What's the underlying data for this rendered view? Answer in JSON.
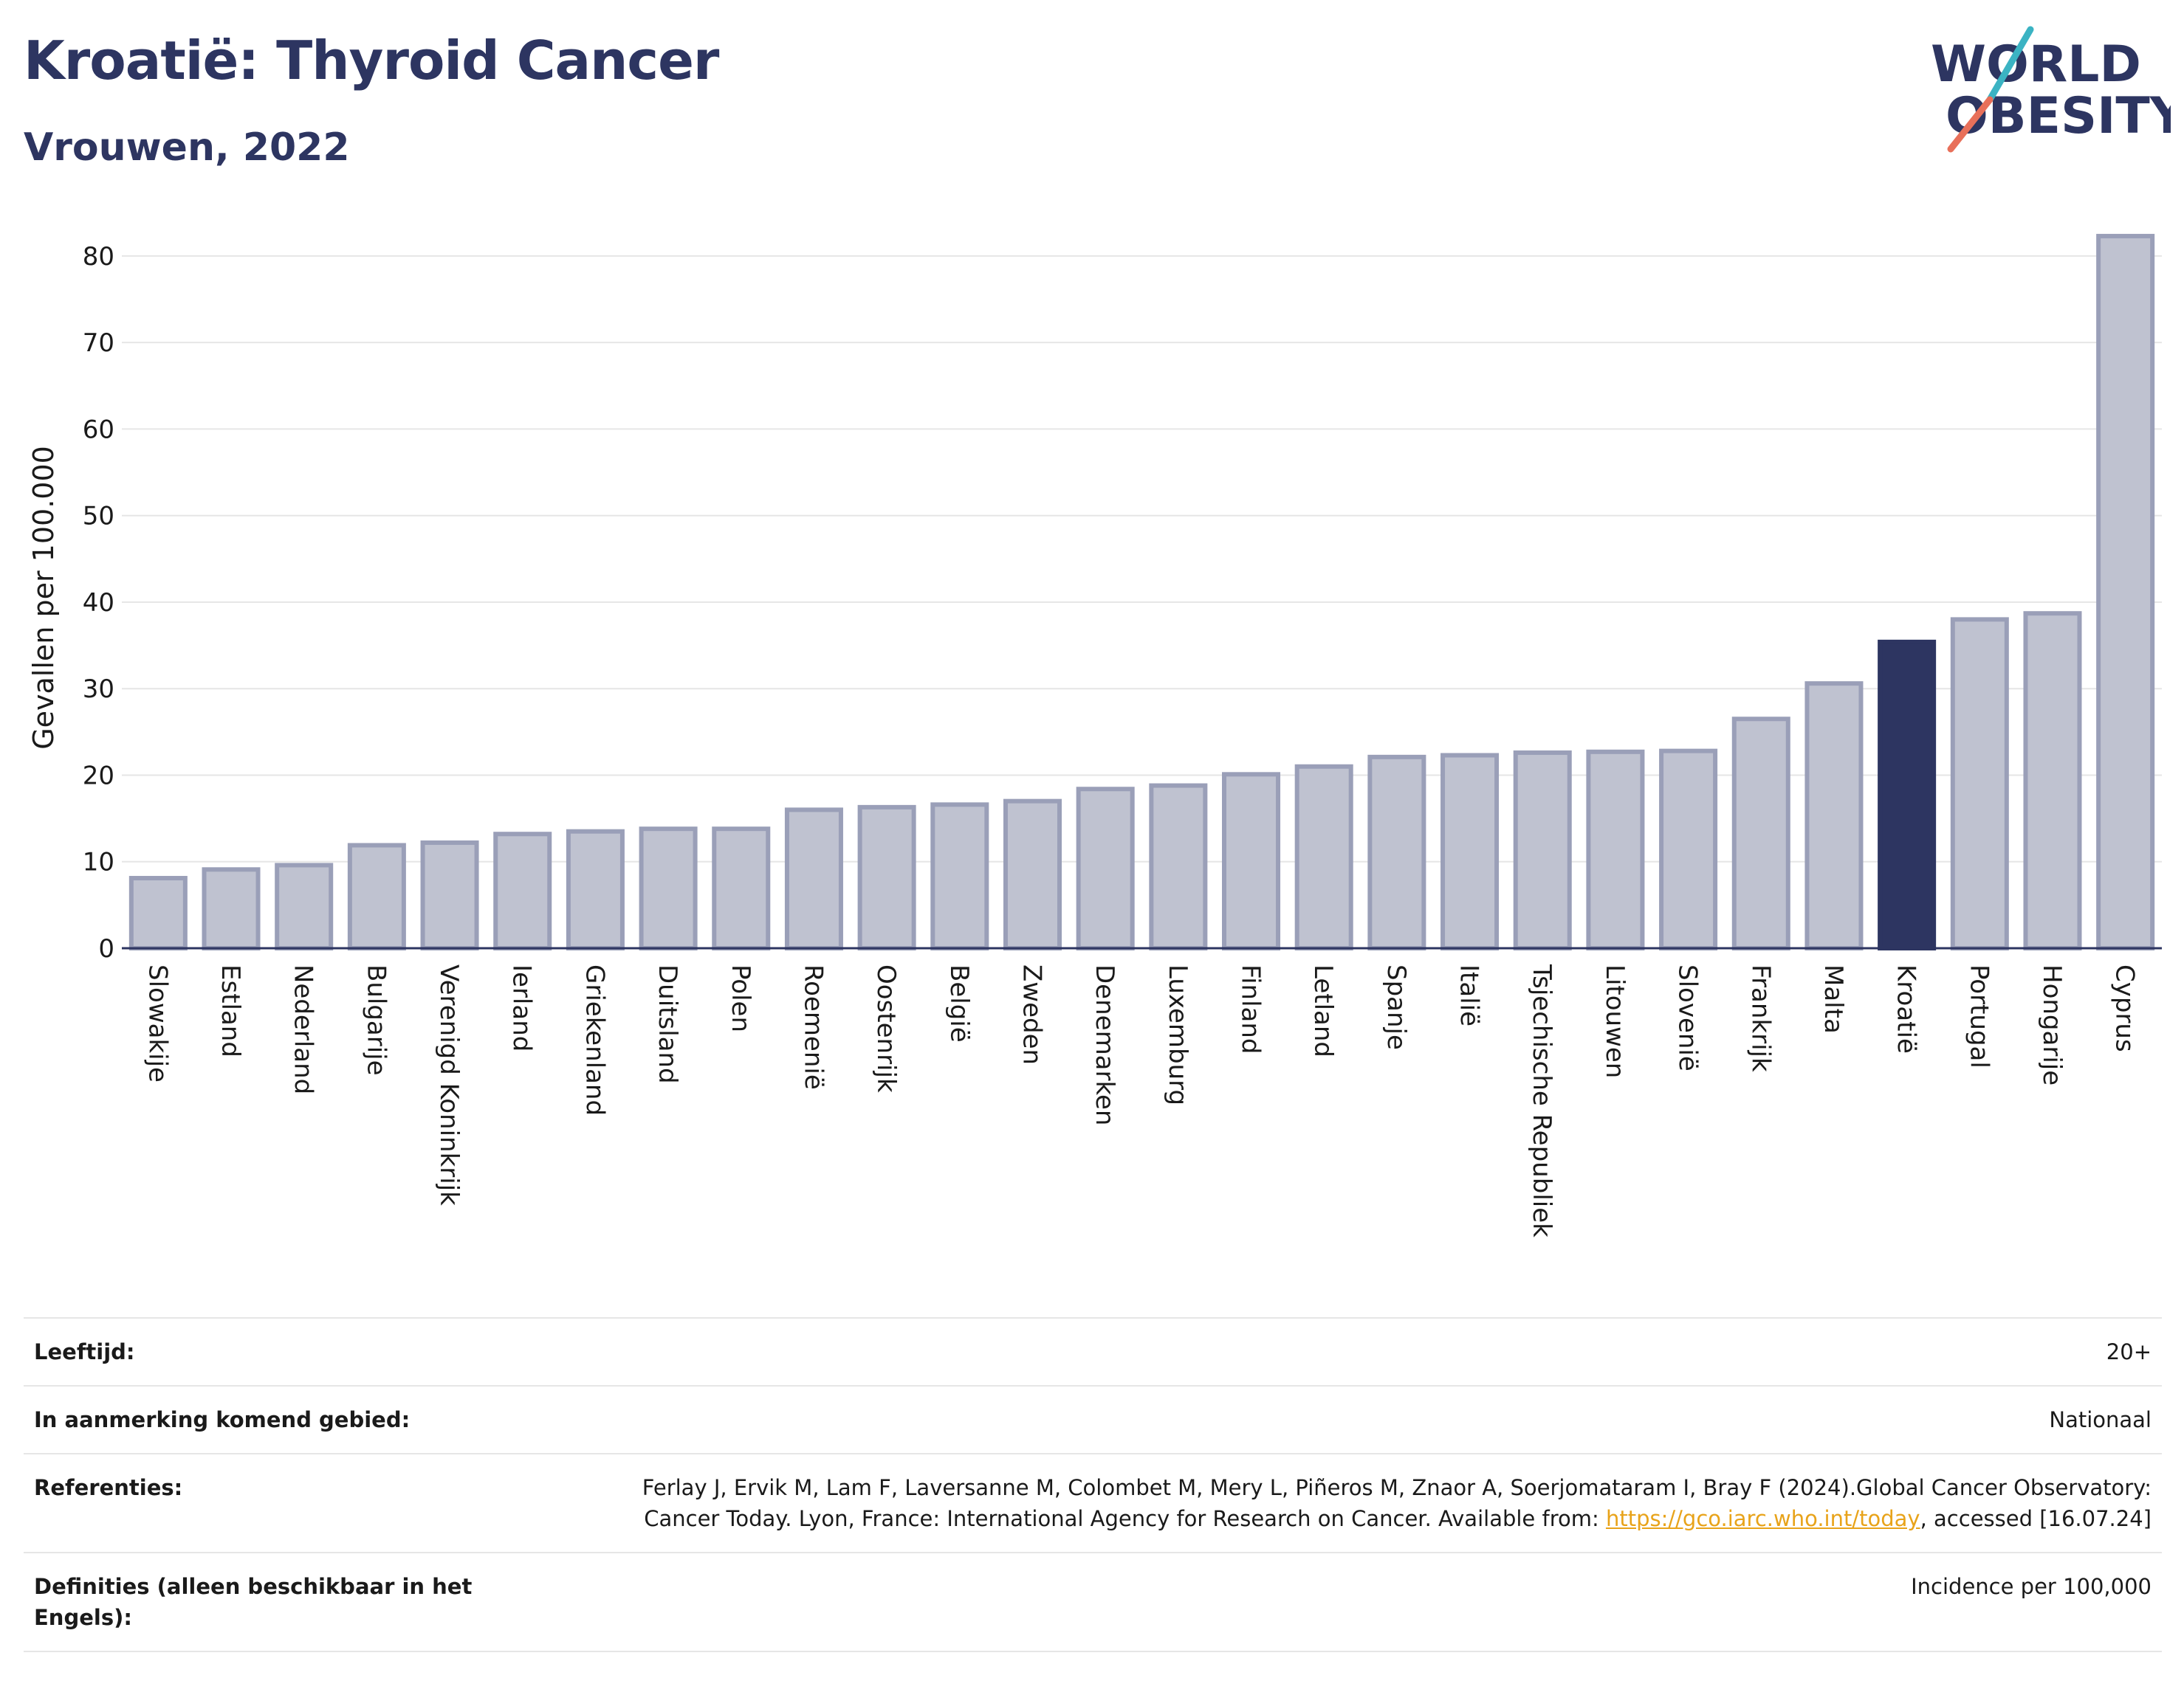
{
  "header": {
    "title": "Kroatië: Thyroid Cancer",
    "subtitle": "Vrouwen, 2022"
  },
  "logo": {
    "line1": "WORLD",
    "line2": "OBESITY",
    "text_color": "#2d3561",
    "slash_color_top": "#3bb3c3",
    "slash_color_bottom": "#e8705a"
  },
  "colors": {
    "bar": "#bfc2d0",
    "bar_stroke": "#9a9fb8",
    "highlight": "#2d3561",
    "grid": "#e6e6e6",
    "axis": "#2d3561"
  },
  "chart_data": {
    "type": "bar",
    "ylabel": "Gevallen per 100.000",
    "xlabel": "",
    "ylim": [
      0,
      84
    ],
    "yticks": [
      0,
      10,
      20,
      30,
      40,
      50,
      60,
      70,
      80
    ],
    "grid": true,
    "highlight": "Kroatië",
    "categories": [
      "Slowakije",
      "Estland",
      "Nederland",
      "Bulgarije",
      "Verenigd Koninkrijk",
      "Ierland",
      "Griekenland",
      "Duitsland",
      "Polen",
      "Roemenië",
      "Oostenrijk",
      "België",
      "Zweden",
      "Denemarken",
      "Luxemburg",
      "Finland",
      "Letland",
      "Spanje",
      "Italië",
      "Tsjechische Republiek",
      "Litouwen",
      "Slovenië",
      "Frankrijk",
      "Malta",
      "Kroatië",
      "Portugal",
      "Hongarije",
      "Cyprus"
    ],
    "values": [
      8.1,
      9.1,
      9.6,
      11.9,
      12.2,
      13.2,
      13.5,
      13.8,
      13.8,
      16.0,
      16.3,
      16.6,
      17.0,
      18.4,
      18.8,
      20.1,
      21.0,
      22.1,
      22.3,
      22.6,
      22.7,
      22.8,
      26.5,
      30.6,
      35.4,
      38.0,
      38.7,
      82.3
    ]
  },
  "info": {
    "age_label": "Leeftijd:",
    "age_value": "20+",
    "area_label": "In aanmerking komend gebied:",
    "area_value": "Nationaal",
    "refs_label": "Referenties:",
    "refs_text_1": "Ferlay J, Ervik M, Lam F, Laversanne M, Colombet M, Mery L, Piñeros M, Znaor A, Soerjomataram I, Bray F (2024).Global Cancer Observatory: Cancer Today. Lyon, France: International Agency for Research on Cancer. Available from: ",
    "refs_link": "https://gco.iarc.who.int/today",
    "refs_text_2": ", accessed [16.07.24]",
    "defs_label": "Definities (alleen beschikbaar in het Engels):",
    "defs_value": "Incidence per 100,000"
  }
}
